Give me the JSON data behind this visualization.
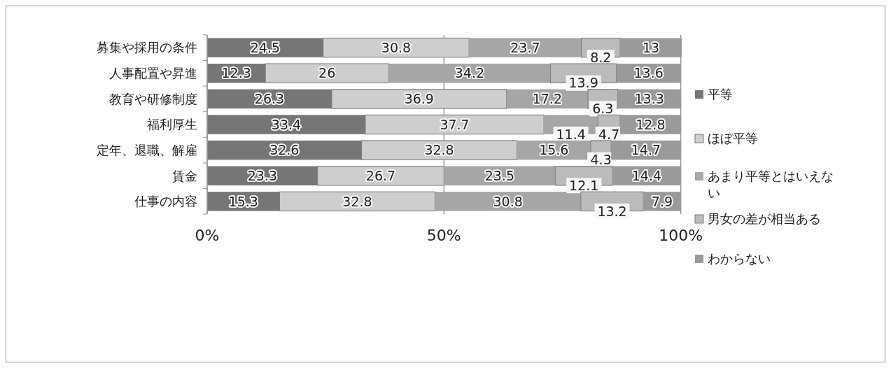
{
  "chart_data": {
    "type": "bar",
    "orientation": "horizontal",
    "stacked": true,
    "categories": [
      "募集や採用の条件",
      "人事配置や昇進",
      "教育や研修制度",
      "福利厚生",
      "定年、退職、解雇",
      "賃金",
      "仕事の内容"
    ],
    "series": [
      {
        "name": "平等",
        "color": "#767676",
        "values": [
          24.5,
          12.3,
          26.3,
          33.4,
          32.6,
          23.3,
          15.3
        ]
      },
      {
        "name": "ほぼ平等",
        "color": "#cecece",
        "values": [
          30.8,
          26,
          36.9,
          37.7,
          32.8,
          26.7,
          32.8
        ]
      },
      {
        "name": "あまり平等とはいえない",
        "color": "#a6a6a6",
        "values": [
          23.7,
          34.2,
          17.2,
          11.4,
          15.6,
          23.5,
          30.8
        ]
      },
      {
        "name": "男女の差が相当ある",
        "color": "#bbbbbb",
        "values": [
          8.2,
          13.9,
          6.3,
          4.7,
          4.3,
          12.1,
          13.2
        ]
      },
      {
        "name": "わからない",
        "color": "#9a9a9a",
        "values": [
          13,
          13.6,
          13.3,
          12.8,
          14.7,
          14.4,
          7.9
        ]
      }
    ],
    "xlim": [
      0,
      100.2
    ],
    "xticks": [
      {
        "value": 0,
        "label": "0%"
      },
      {
        "value": 50,
        "label": "50%"
      },
      {
        "value": 100,
        "label": "100%"
      }
    ],
    "grid": "x",
    "legend": "right",
    "data_labels": true
  }
}
